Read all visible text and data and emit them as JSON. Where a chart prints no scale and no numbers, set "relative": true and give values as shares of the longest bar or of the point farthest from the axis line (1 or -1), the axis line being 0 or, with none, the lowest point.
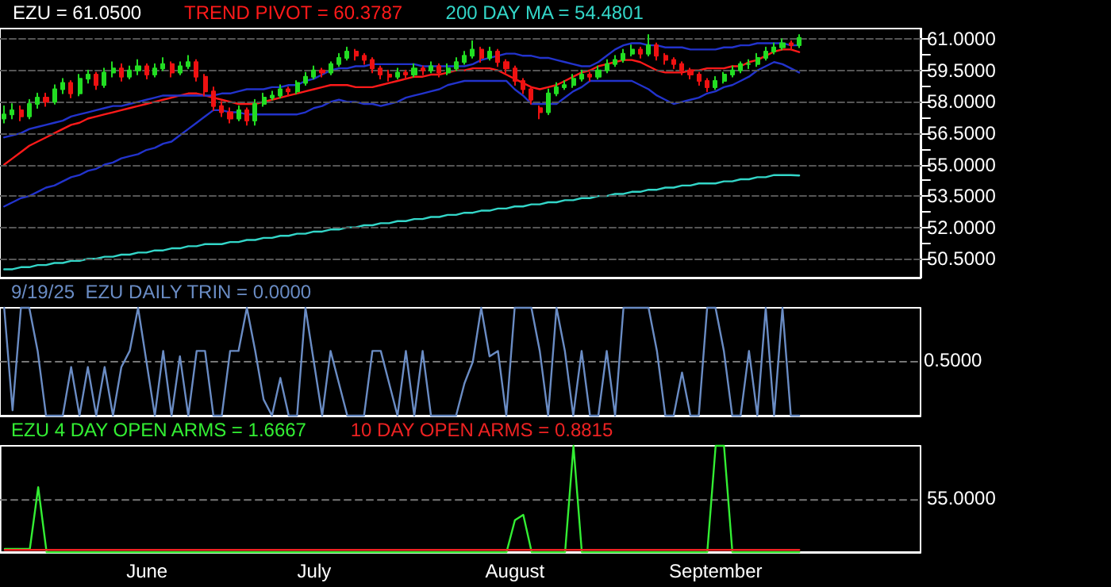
{
  "chart_data": [
    {
      "type": "candlestick",
      "categories": [
        null,
        null,
        null,
        null,
        null,
        null,
        null,
        null,
        null,
        null,
        null,
        null,
        null,
        null,
        null,
        null,
        null,
        null,
        null,
        null,
        null,
        null,
        null,
        null,
        null,
        null,
        null,
        null,
        null,
        null,
        null,
        null,
        null,
        null,
        null,
        null,
        null,
        null,
        null,
        null,
        null,
        null,
        null,
        null,
        null,
        null,
        null,
        null,
        null,
        null,
        null,
        null,
        null,
        null,
        null,
        null,
        null,
        null,
        null,
        null,
        null,
        null,
        null,
        null,
        null,
        null,
        null,
        null,
        null,
        null,
        null,
        null,
        null,
        null,
        null,
        null,
        null,
        null,
        null,
        null,
        null,
        null,
        null,
        null,
        null,
        null,
        null,
        null,
        null,
        null,
        null,
        null,
        null,
        null,
        null,
        null,
        null,
        null,
        null,
        null,
        null,
        null,
        null,
        null,
        null,
        null,
        null,
        null,
        null,
        null
      ],
      "series": [
        {
          "name": "EZU = 61.0500",
          "type": "candlestick",
          "ohlc": [
            [
              57.2,
              57.8,
              57.0,
              57.4
            ],
            [
              57.4,
              57.9,
              57.2,
              57.6
            ],
            [
              57.6,
              57.8,
              57.1,
              57.3
            ],
            [
              57.3,
              58.1,
              57.2,
              57.9
            ],
            [
              57.9,
              58.4,
              57.7,
              58.2
            ],
            [
              58.2,
              58.4,
              57.8,
              58.0
            ],
            [
              58.0,
              58.8,
              57.9,
              58.6
            ],
            [
              58.6,
              59.1,
              58.4,
              58.9
            ],
            [
              58.9,
              59.0,
              58.2,
              58.4
            ],
            [
              58.4,
              59.3,
              58.3,
              59.1
            ],
            [
              59.1,
              59.5,
              58.9,
              59.3
            ],
            [
              59.3,
              59.4,
              58.6,
              58.8
            ],
            [
              58.8,
              59.6,
              58.7,
              59.4
            ],
            [
              59.4,
              59.9,
              59.2,
              59.6
            ],
            [
              59.6,
              59.8,
              59.0,
              59.2
            ],
            [
              59.2,
              59.7,
              59.1,
              59.5
            ],
            [
              59.5,
              60.0,
              59.3,
              59.7
            ],
            [
              59.7,
              59.8,
              59.1,
              59.3
            ],
            [
              59.3,
              59.8,
              59.2,
              59.6
            ],
            [
              59.6,
              60.1,
              59.5,
              59.8
            ],
            [
              59.8,
              59.9,
              59.2,
              59.4
            ],
            [
              59.4,
              59.9,
              59.3,
              59.7
            ],
            [
              59.7,
              60.2,
              59.6,
              59.9
            ],
            [
              59.9,
              60.0,
              59.0,
              59.2
            ],
            [
              59.2,
              59.3,
              58.3,
              58.5
            ],
            [
              58.5,
              58.7,
              57.6,
              57.8
            ],
            [
              57.8,
              58.0,
              57.3,
              57.5
            ],
            [
              57.5,
              57.7,
              57.0,
              57.2
            ],
            [
              57.2,
              57.8,
              57.1,
              57.6
            ],
            [
              57.6,
              57.7,
              56.9,
              57.1
            ],
            [
              57.1,
              58.1,
              56.9,
              57.9
            ],
            [
              57.9,
              58.4,
              57.8,
              58.2
            ],
            [
              58.2,
              58.5,
              58.1,
              58.3
            ],
            [
              58.3,
              58.8,
              58.2,
              58.6
            ],
            [
              58.6,
              58.7,
              58.3,
              58.5
            ],
            [
              58.5,
              59.0,
              58.4,
              58.9
            ],
            [
              58.9,
              59.4,
              58.8,
              59.2
            ],
            [
              59.2,
              59.7,
              59.1,
              59.5
            ],
            [
              59.5,
              59.6,
              59.2,
              59.4
            ],
            [
              59.4,
              59.9,
              59.3,
              59.8
            ],
            [
              59.8,
              60.3,
              59.7,
              60.1
            ],
            [
              60.1,
              60.6,
              60.0,
              60.4
            ],
            [
              60.4,
              60.5,
              60.0,
              60.2
            ],
            [
              60.2,
              60.3,
              59.8,
              60.0
            ],
            [
              60.0,
              60.1,
              59.4,
              59.6
            ],
            [
              59.6,
              59.7,
              59.1,
              59.3
            ],
            [
              59.3,
              59.5,
              59.0,
              59.2
            ],
            [
              59.2,
              59.6,
              59.1,
              59.4
            ],
            [
              59.4,
              59.5,
              59.1,
              59.3
            ],
            [
              59.3,
              59.8,
              59.2,
              59.6
            ],
            [
              59.6,
              59.7,
              59.3,
              59.5
            ],
            [
              59.5,
              59.9,
              59.4,
              59.7
            ],
            [
              59.7,
              59.8,
              59.2,
              59.4
            ],
            [
              59.4,
              59.8,
              59.3,
              59.6
            ],
            [
              59.6,
              60.1,
              59.5,
              59.9
            ],
            [
              59.9,
              60.4,
              59.8,
              60.2
            ],
            [
              60.2,
              60.9,
              60.1,
              60.5
            ],
            [
              60.5,
              60.6,
              59.9,
              60.1
            ],
            [
              60.1,
              60.6,
              60.0,
              60.4
            ],
            [
              60.4,
              60.5,
              59.7,
              59.9
            ],
            [
              59.9,
              60.0,
              59.4,
              59.6
            ],
            [
              59.6,
              59.7,
              58.8,
              59.0
            ],
            [
              59.0,
              59.1,
              58.4,
              58.6
            ],
            [
              58.6,
              58.7,
              57.9,
              58.1
            ],
            [
              57.7,
              57.8,
              57.2,
              57.5
            ],
            [
              57.5,
              58.6,
              57.4,
              58.4
            ],
            [
              58.4,
              58.9,
              58.3,
              58.7
            ],
            [
              58.7,
              59.0,
              58.6,
              58.8
            ],
            [
              58.8,
              59.3,
              58.7,
              59.1
            ],
            [
              59.1,
              59.5,
              59.0,
              59.3
            ],
            [
              59.3,
              59.4,
              59.0,
              59.2
            ],
            [
              59.2,
              59.7,
              59.1,
              59.5
            ],
            [
              59.5,
              60.0,
              59.4,
              59.8
            ],
            [
              59.8,
              60.2,
              59.7,
              60.0
            ],
            [
              60.0,
              60.5,
              59.9,
              60.3
            ],
            [
              60.3,
              60.7,
              60.2,
              60.5
            ],
            [
              60.5,
              60.6,
              60.1,
              60.3
            ],
            [
              60.3,
              61.2,
              60.2,
              60.7
            ],
            [
              60.7,
              60.8,
              60.0,
              60.2
            ],
            [
              60.2,
              60.3,
              59.8,
              60.0
            ],
            [
              60.0,
              60.1,
              59.6,
              59.8
            ],
            [
              59.8,
              59.9,
              59.3,
              59.5
            ],
            [
              59.5,
              59.6,
              59.1,
              59.3
            ],
            [
              59.3,
              59.4,
              58.8,
              59.0
            ],
            [
              59.0,
              59.1,
              58.5,
              58.7
            ],
            [
              58.7,
              59.2,
              58.6,
              59.0
            ],
            [
              59.0,
              59.4,
              58.9,
              59.3
            ],
            [
              59.3,
              59.7,
              59.2,
              59.5
            ],
            [
              59.5,
              59.9,
              59.4,
              59.8
            ],
            [
              59.8,
              60.0,
              59.6,
              59.8
            ],
            [
              59.8,
              60.3,
              59.7,
              60.1
            ],
            [
              60.1,
              60.6,
              60.0,
              60.4
            ],
            [
              60.4,
              60.8,
              60.3,
              60.6
            ],
            [
              60.6,
              61.0,
              60.5,
              60.8
            ],
            [
              60.8,
              60.9,
              60.5,
              60.7
            ],
            [
              60.7,
              61.2,
              60.6,
              61.05
            ],
            null,
            null,
            null,
            null,
            null,
            null,
            null,
            null,
            null,
            null,
            null,
            null,
            null,
            null
          ]
        },
        {
          "name": "TREND PIVOT = 60.3787",
          "type": "line",
          "color": "#ff1a1a",
          "values": [
            55.0,
            55.3,
            55.6,
            55.9,
            56.1,
            56.3,
            56.5,
            56.7,
            56.9,
            57.0,
            57.2,
            57.3,
            57.4,
            57.5,
            57.6,
            57.7,
            57.8,
            57.9,
            58.0,
            58.1,
            58.2,
            58.3,
            58.4,
            58.4,
            58.3,
            58.2,
            58.1,
            58.0,
            57.9,
            57.9,
            57.9,
            58.0,
            58.1,
            58.2,
            58.3,
            58.4,
            58.5,
            58.6,
            58.7,
            58.8,
            58.8,
            58.8,
            58.7,
            58.7,
            58.7,
            58.8,
            58.9,
            59.0,
            59.1,
            59.2,
            59.2,
            59.3,
            59.3,
            59.4,
            59.5,
            59.5,
            59.6,
            59.6,
            59.6,
            59.5,
            59.3,
            59.1,
            58.9,
            58.7,
            58.6,
            58.7,
            58.8,
            59.0,
            59.2,
            59.4,
            59.5,
            59.7,
            59.8,
            59.9,
            60.0,
            60.0,
            59.9,
            59.7,
            59.5,
            59.4,
            59.4,
            59.4,
            59.5,
            59.5,
            59.6,
            59.6,
            59.6,
            59.7,
            59.7,
            59.9,
            60.0,
            60.2,
            60.4,
            60.5,
            60.5,
            60.38,
            null,
            null,
            null,
            null,
            null,
            null,
            null,
            null,
            null,
            null,
            null,
            null,
            null,
            null
          ]
        },
        {
          "type": "line",
          "color": "#2233cc",
          "values": [
            56.3,
            56.4,
            56.5,
            56.7,
            56.8,
            56.9,
            57.0,
            57.1,
            57.3,
            57.4,
            57.5,
            57.6,
            57.7,
            57.8,
            57.8,
            57.9,
            58.0,
            58.1,
            58.2,
            58.3,
            58.3,
            58.3,
            58.3,
            58.3,
            58.3,
            58.3,
            58.4,
            58.4,
            58.5,
            58.6,
            58.6,
            58.6,
            58.7,
            58.7,
            58.8,
            58.8,
            59.0,
            59.1,
            59.3,
            59.5,
            59.6,
            59.6,
            59.7,
            59.7,
            59.8,
            59.8,
            59.8,
            59.8,
            59.8,
            59.8,
            59.7,
            59.7,
            59.7,
            59.7,
            59.7,
            59.7,
            59.8,
            60.0,
            60.1,
            60.2,
            60.3,
            60.3,
            60.2,
            60.2,
            60.1,
            60.1,
            60.0,
            59.9,
            59.8,
            59.7,
            59.7,
            59.9,
            60.2,
            60.5,
            60.7,
            60.8,
            60.8,
            60.7,
            60.7,
            60.6,
            60.6,
            60.6,
            60.5,
            60.5,
            60.5,
            60.5,
            60.6,
            60.6,
            60.7,
            60.7,
            60.8,
            60.8,
            60.8,
            60.8,
            60.7,
            60.7,
            null,
            null,
            null,
            null,
            null,
            null,
            null,
            null,
            null,
            null,
            null,
            null,
            null,
            null
          ]
        },
        {
          "type": "line",
          "color": "#2233cc",
          "values": [
            53.0,
            53.2,
            53.4,
            53.5,
            53.7,
            53.9,
            54.0,
            54.2,
            54.4,
            54.5,
            54.7,
            54.8,
            55.0,
            55.1,
            55.3,
            55.4,
            55.5,
            55.7,
            55.8,
            56.0,
            56.1,
            56.4,
            56.7,
            57.0,
            57.3,
            57.6,
            57.6,
            57.5,
            57.5,
            57.4,
            57.4,
            57.4,
            57.4,
            57.4,
            57.4,
            57.4,
            57.5,
            57.7,
            57.8,
            58.0,
            58.1,
            58.0,
            58.0,
            57.9,
            57.9,
            57.8,
            57.9,
            58.0,
            58.2,
            58.3,
            58.4,
            58.5,
            58.6,
            58.8,
            58.9,
            59.0,
            59.0,
            59.0,
            59.0,
            59.0,
            59.0,
            58.6,
            58.3,
            57.9,
            57.9,
            57.9,
            57.9,
            58.2,
            58.5,
            58.7,
            59.0,
            59.0,
            59.0,
            59.0,
            59.0,
            59.0,
            58.8,
            58.6,
            58.3,
            58.1,
            57.9,
            58.0,
            58.1,
            58.2,
            58.4,
            58.5,
            58.7,
            58.8,
            59.0,
            59.2,
            59.5,
            59.7,
            59.9,
            59.8,
            59.6,
            59.4,
            null,
            null,
            null,
            null,
            null,
            null,
            null,
            null,
            null,
            null,
            null,
            null,
            null,
            null
          ]
        },
        {
          "name": "200 DAY MA = 54.4801",
          "type": "line",
          "color": "#33d6c8",
          "values": [
            50.0,
            50.0,
            50.1,
            50.1,
            50.2,
            50.2,
            50.3,
            50.3,
            50.4,
            50.4,
            50.5,
            50.5,
            50.6,
            50.6,
            50.7,
            50.7,
            50.8,
            50.8,
            50.9,
            50.9,
            51.0,
            51.0,
            51.1,
            51.1,
            51.2,
            51.2,
            51.2,
            51.3,
            51.3,
            51.4,
            51.4,
            51.5,
            51.5,
            51.6,
            51.6,
            51.7,
            51.7,
            51.8,
            51.8,
            51.9,
            51.9,
            52.0,
            52.0,
            52.1,
            52.1,
            52.2,
            52.2,
            52.3,
            52.3,
            52.4,
            52.4,
            52.5,
            52.5,
            52.6,
            52.6,
            52.7,
            52.7,
            52.8,
            52.8,
            52.9,
            52.9,
            53.0,
            53.0,
            53.1,
            53.1,
            53.2,
            53.2,
            53.3,
            53.3,
            53.4,
            53.4,
            53.5,
            53.5,
            53.6,
            53.6,
            53.7,
            53.7,
            53.8,
            53.8,
            53.9,
            53.9,
            54.0,
            54.0,
            54.1,
            54.1,
            54.1,
            54.2,
            54.2,
            54.3,
            54.3,
            54.4,
            54.4,
            54.5,
            54.5,
            54.5,
            54.48,
            null,
            null,
            null,
            null,
            null,
            null,
            null,
            null,
            null,
            null,
            null,
            null,
            null,
            null
          ]
        }
      ],
      "ylim": [
        49.6,
        61.5
      ],
      "yticks": [
        {
          "value": 50.5,
          "label": "50.5000"
        },
        {
          "value": 51.25,
          "label": null
        },
        {
          "value": 52,
          "label": "52.0000"
        },
        {
          "value": 52.75,
          "label": null
        },
        {
          "value": 53.5,
          "label": "53.5000"
        },
        {
          "value": 54.25,
          "label": null
        },
        {
          "value": 55,
          "label": "55.0000"
        },
        {
          "value": 55.75,
          "label": null
        },
        {
          "value": 56.5,
          "label": "56.5000"
        },
        {
          "value": 57.25,
          "label": null
        },
        {
          "value": 58,
          "label": "58.0000"
        },
        {
          "value": 58.75,
          "label": null
        },
        {
          "value": 59.5,
          "label": "59.5000"
        },
        {
          "value": 60.25,
          "label": null
        },
        {
          "value": 61,
          "label": "61.0000"
        }
      ],
      "grid": "y",
      "legend": "top left",
      "tick_labels": "y"
    },
    {
      "type": "line",
      "relative": true,
      "categories": [
        null,
        null,
        null,
        null,
        null,
        null,
        null,
        null,
        null,
        null,
        null,
        null,
        null,
        null,
        null,
        null,
        null,
        null,
        null,
        null,
        null,
        null,
        null,
        null,
        null,
        null,
        null,
        null,
        null,
        null,
        null,
        null,
        null,
        null,
        null,
        null,
        null,
        null,
        null,
        null,
        null,
        null,
        null,
        null,
        null,
        null,
        null,
        null,
        null,
        null,
        null,
        null,
        null,
        null,
        null,
        null,
        null,
        null,
        null,
        null,
        null,
        null,
        null,
        null,
        null,
        null,
        null,
        null,
        null,
        null,
        null,
        null,
        null,
        null,
        null,
        null,
        null,
        null,
        null,
        null,
        null,
        null,
        null,
        null,
        null,
        null,
        null,
        null,
        null,
        null,
        null,
        null,
        null,
        null,
        null,
        null,
        null,
        null,
        null,
        null,
        null,
        null,
        null,
        null,
        null,
        null,
        null,
        null,
        null,
        null
      ],
      "series": [
        {
          "name": "9/19/25  EZU DAILY TRIN = 0.0000",
          "color": "#6a8cc4",
          "values": [
            1,
            0.05,
            1,
            1,
            0.6,
            0,
            0,
            0,
            0.45,
            0,
            0.45,
            0,
            0.45,
            0,
            0.45,
            0.6,
            1,
            0.5,
            0,
            0.6,
            0,
            0.55,
            0,
            0.6,
            0.6,
            0,
            0,
            0.6,
            0.6,
            1,
            0.6,
            0.15,
            0,
            0.35,
            0,
            0,
            1,
            0.5,
            0,
            0.6,
            0.3,
            0,
            0,
            0,
            0.6,
            0.6,
            0.3,
            0,
            0.6,
            0,
            0.6,
            0,
            0,
            0,
            0,
            0.3,
            0.5,
            1,
            0.55,
            0.6,
            0,
            1,
            1,
            1,
            0.6,
            0,
            1,
            0.6,
            0,
            0.6,
            0,
            0,
            0.6,
            0,
            1,
            1,
            1,
            1,
            0.6,
            0,
            0,
            0.4,
            0,
            0,
            1,
            1,
            0.6,
            0,
            0,
            0.6,
            0,
            1,
            0,
            1,
            0,
            0,
            null,
            null,
            null,
            null,
            null,
            null,
            null,
            null,
            null,
            null,
            null,
            null,
            null,
            null
          ]
        }
      ],
      "ref_lines": [
        {
          "axis": "y",
          "value": 0.5,
          "label": "0.5000",
          "color": "#777777",
          "line_style": "dashed"
        }
      ],
      "legend": "top left",
      "tick_labels": false
    },
    {
      "type": "line",
      "relative": true,
      "categories": [
        null,
        null,
        null,
        null,
        null,
        null,
        null,
        null,
        null,
        null,
        null,
        null,
        null,
        null,
        null,
        null,
        null,
        "June",
        null,
        null,
        null,
        null,
        null,
        null,
        null,
        null,
        null,
        null,
        null,
        null,
        null,
        null,
        null,
        null,
        null,
        null,
        null,
        "July",
        null,
        null,
        null,
        null,
        null,
        null,
        null,
        null,
        null,
        null,
        null,
        null,
        null,
        null,
        null,
        null,
        null,
        null,
        null,
        null,
        null,
        null,
        null,
        "August",
        null,
        null,
        null,
        null,
        null,
        null,
        null,
        null,
        null,
        null,
        null,
        null,
        null,
        null,
        null,
        null,
        null,
        null,
        null,
        null,
        null,
        null,
        null,
        "September",
        null,
        null,
        null,
        null,
        null,
        null,
        null,
        null,
        null,
        null,
        null,
        null,
        null,
        null,
        null,
        null,
        null,
        null,
        null,
        null,
        null,
        null,
        null,
        null
      ],
      "series": [
        {
          "name": "EZU 4 DAY OPEN ARMS = 1.6667",
          "color": "#33ee33",
          "values": [
            0.03,
            0.03,
            0.03,
            0.03,
            0.61,
            0,
            0,
            0,
            0,
            0,
            0,
            0,
            0,
            0,
            0,
            0,
            0,
            0,
            0,
            0,
            0,
            0,
            0,
            0,
            0,
            0,
            0,
            0,
            0,
            0,
            0,
            0,
            0,
            0,
            0,
            0,
            0,
            0,
            0,
            0,
            0,
            0,
            0,
            0,
            0,
            0,
            0,
            0,
            0,
            0,
            0,
            0,
            0,
            0,
            0,
            0,
            0,
            0,
            0,
            0,
            0,
            0.3,
            0.35,
            0,
            0,
            0,
            0,
            0,
            1,
            0,
            0,
            0,
            0,
            0,
            0,
            0,
            0,
            0,
            0,
            0,
            0,
            0,
            0,
            0,
            0,
            1,
            1,
            0,
            0,
            0,
            0,
            0,
            0,
            0,
            0,
            0,
            null,
            null,
            null,
            null,
            null,
            null,
            null,
            null,
            null,
            null,
            null,
            null,
            null,
            null
          ]
        },
        {
          "name": "10 DAY OPEN ARMS = 0.8815",
          "color": "#ee2222",
          "values": [
            0.02,
            0.02,
            0.02,
            0.02,
            0.02,
            0.02,
            0.02,
            0.02,
            0.02,
            0.02,
            0.02,
            0.02,
            0.02,
            0.02,
            0.02,
            0.02,
            0.02,
            0.02,
            0.02,
            0.02,
            0.02,
            0.02,
            0.02,
            0.02,
            0.02,
            0.02,
            0.02,
            0.02,
            0.02,
            0.02,
            0.02,
            0.02,
            0.02,
            0.02,
            0.02,
            0.02,
            0.02,
            0.02,
            0.02,
            0.02,
            0.02,
            0.02,
            0.02,
            0.02,
            0.02,
            0.02,
            0.02,
            0.02,
            0.02,
            0.02,
            0.02,
            0.02,
            0.02,
            0.02,
            0.02,
            0.02,
            0.02,
            0.02,
            0.02,
            0.02,
            0.02,
            0.02,
            0.02,
            0.02,
            0.02,
            0.02,
            0.02,
            0.02,
            0.02,
            0.02,
            0.02,
            0.02,
            0.02,
            0.02,
            0.02,
            0.02,
            0.02,
            0.02,
            0.02,
            0.02,
            0.02,
            0.02,
            0.02,
            0.02,
            0.02,
            0.02,
            0.02,
            0.02,
            0.02,
            0.02,
            0.02,
            0.02,
            0.02,
            0.02,
            0.02,
            0.02,
            null,
            null,
            null,
            null,
            null,
            null,
            null,
            null,
            null,
            null,
            null,
            null,
            null,
            null
          ]
        }
      ],
      "ref_lines": [
        {
          "axis": "y",
          "value": 0.49,
          "color": "#777777",
          "line_style": "dashed"
        }
      ],
      "annotations": [
        "55.0000"
      ],
      "legend": "top left",
      "tick_labels": "x"
    }
  ]
}
